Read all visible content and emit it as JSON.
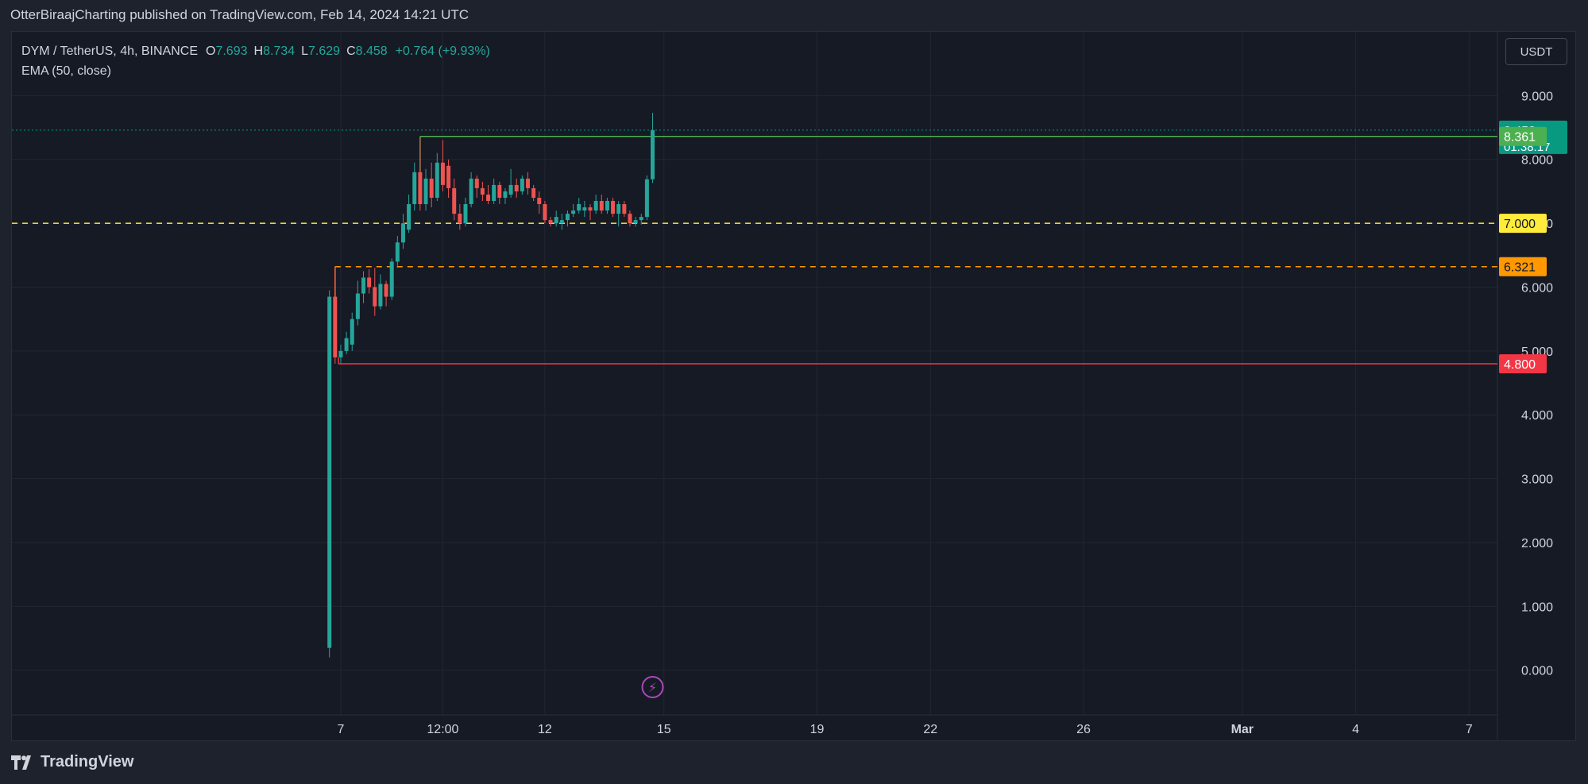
{
  "publish_line": "OtterBiraajCharting published on TradingView.com, Feb 14, 2024 14:21 UTC",
  "legend": {
    "symbol": "DYM / TetherUS, 4h, BINANCE",
    "o_label": "O",
    "o_value": "7.693",
    "h_label": "H",
    "h_value": "8.734",
    "l_label": "L",
    "l_value": "7.629",
    "c_label": "C",
    "c_value": "8.458",
    "change": "+0.764 (+9.93%)",
    "indicator": "EMA (50, close)"
  },
  "currency": "USDT",
  "footer": {
    "brand": "TradingView"
  },
  "colors": {
    "background": "#161a25",
    "grid": "#232632",
    "up": "#26a69a",
    "down": "#ef5350",
    "green_line": "#26a69a",
    "red_line": "#f23645",
    "yellow_line": "#ffeb3b",
    "orange_line": "#ff9800",
    "text": "#d1d4dc",
    "event_icon": "#ab47bc"
  },
  "chart_data": {
    "type": "candlestick",
    "y_axis": {
      "ticks": [
        9,
        8,
        7,
        6,
        5,
        4,
        3,
        2,
        1,
        0
      ],
      "tick_labels": [
        "9.000",
        "8.000",
        "7.000",
        "6.000",
        "5.000",
        "4.000",
        "3.000",
        "2.000",
        "1.000",
        "0.000"
      ],
      "range": [
        -0.7,
        10.0
      ]
    },
    "x_axis": {
      "tick_labels": [
        {
          "label": "7",
          "t": 0.1
        },
        {
          "label": "12:00",
          "t": 1.0
        },
        {
          "label": "12",
          "t": 1.9
        },
        {
          "label": "15",
          "t": 2.95
        },
        {
          "label": "19",
          "t": 4.3
        },
        {
          "label": "22",
          "t": 5.3
        },
        {
          "label": "26",
          "t": 6.65
        },
        {
          "label": "Mar",
          "t": 8.05,
          "bold": true
        },
        {
          "label": "4",
          "t": 9.05
        },
        {
          "label": "7",
          "t": 10.05
        }
      ],
      "range": [
        -2.8,
        10.3
      ]
    },
    "candles": [
      {
        "t": 0.0,
        "o": 0.35,
        "h": 5.95,
        "l": 0.2,
        "c": 5.85
      },
      {
        "t": 0.05,
        "o": 5.85,
        "h": 6.32,
        "l": 4.8,
        "c": 4.9
      },
      {
        "t": 0.1,
        "o": 4.9,
        "h": 5.1,
        "l": 4.8,
        "c": 5.0
      },
      {
        "t": 0.15,
        "o": 5.0,
        "h": 5.3,
        "l": 4.95,
        "c": 5.2
      },
      {
        "t": 0.2,
        "o": 5.1,
        "h": 5.6,
        "l": 5.0,
        "c": 5.5
      },
      {
        "t": 0.25,
        "o": 5.5,
        "h": 6.1,
        "l": 5.4,
        "c": 5.9
      },
      {
        "t": 0.3,
        "o": 5.9,
        "h": 6.25,
        "l": 5.75,
        "c": 6.15
      },
      {
        "t": 0.35,
        "o": 6.15,
        "h": 6.28,
        "l": 5.9,
        "c": 6.0
      },
      {
        "t": 0.4,
        "o": 6.0,
        "h": 6.3,
        "l": 5.55,
        "c": 5.7
      },
      {
        "t": 0.45,
        "o": 5.7,
        "h": 6.2,
        "l": 5.65,
        "c": 6.05
      },
      {
        "t": 0.5,
        "o": 6.05,
        "h": 6.1,
        "l": 5.7,
        "c": 5.85
      },
      {
        "t": 0.55,
        "o": 5.85,
        "h": 6.45,
        "l": 5.8,
        "c": 6.4
      },
      {
        "t": 0.6,
        "o": 6.4,
        "h": 6.8,
        "l": 6.3,
        "c": 6.7
      },
      {
        "t": 0.65,
        "o": 6.7,
        "h": 7.15,
        "l": 6.6,
        "c": 7.0
      },
      {
        "t": 0.7,
        "o": 6.9,
        "h": 7.45,
        "l": 6.85,
        "c": 7.3
      },
      {
        "t": 0.75,
        "o": 7.3,
        "h": 7.95,
        "l": 7.2,
        "c": 7.8
      },
      {
        "t": 0.8,
        "o": 7.8,
        "h": 8.35,
        "l": 7.2,
        "c": 7.3
      },
      {
        "t": 0.85,
        "o": 7.3,
        "h": 7.85,
        "l": 7.2,
        "c": 7.7
      },
      {
        "t": 0.9,
        "o": 7.7,
        "h": 7.95,
        "l": 7.25,
        "c": 7.4
      },
      {
        "t": 0.95,
        "o": 7.4,
        "h": 8.1,
        "l": 7.35,
        "c": 7.95
      },
      {
        "t": 1.0,
        "o": 7.95,
        "h": 8.3,
        "l": 7.5,
        "c": 7.6
      },
      {
        "t": 1.05,
        "o": 7.9,
        "h": 8.0,
        "l": 7.4,
        "c": 7.55
      },
      {
        "t": 1.1,
        "o": 7.55,
        "h": 7.7,
        "l": 7.05,
        "c": 7.15
      },
      {
        "t": 1.15,
        "o": 7.15,
        "h": 7.3,
        "l": 6.9,
        "c": 7.0
      },
      {
        "t": 1.2,
        "o": 7.0,
        "h": 7.4,
        "l": 6.95,
        "c": 7.3
      },
      {
        "t": 1.25,
        "o": 7.3,
        "h": 7.8,
        "l": 7.25,
        "c": 7.7
      },
      {
        "t": 1.3,
        "o": 7.7,
        "h": 7.75,
        "l": 7.4,
        "c": 7.55
      },
      {
        "t": 1.35,
        "o": 7.55,
        "h": 7.65,
        "l": 7.35,
        "c": 7.45
      },
      {
        "t": 1.4,
        "o": 7.45,
        "h": 7.6,
        "l": 7.3,
        "c": 7.35
      },
      {
        "t": 1.45,
        "o": 7.35,
        "h": 7.7,
        "l": 7.3,
        "c": 7.6
      },
      {
        "t": 1.5,
        "o": 7.6,
        "h": 7.65,
        "l": 7.3,
        "c": 7.4
      },
      {
        "t": 1.55,
        "o": 7.4,
        "h": 7.55,
        "l": 7.3,
        "c": 7.5
      },
      {
        "t": 1.6,
        "o": 7.45,
        "h": 7.85,
        "l": 7.4,
        "c": 7.6
      },
      {
        "t": 1.65,
        "o": 7.6,
        "h": 7.7,
        "l": 7.4,
        "c": 7.5
      },
      {
        "t": 1.7,
        "o": 7.5,
        "h": 7.75,
        "l": 7.45,
        "c": 7.7
      },
      {
        "t": 1.75,
        "o": 7.7,
        "h": 7.8,
        "l": 7.45,
        "c": 7.55
      },
      {
        "t": 1.8,
        "o": 7.55,
        "h": 7.6,
        "l": 7.35,
        "c": 7.4
      },
      {
        "t": 1.85,
        "o": 7.4,
        "h": 7.5,
        "l": 7.15,
        "c": 7.3
      },
      {
        "t": 1.9,
        "o": 7.3,
        "h": 7.35,
        "l": 7.0,
        "c": 7.05
      },
      {
        "t": 1.95,
        "o": 7.05,
        "h": 7.1,
        "l": 6.95,
        "c": 7.0
      },
      {
        "t": 2.0,
        "o": 7.0,
        "h": 7.2,
        "l": 6.95,
        "c": 7.1
      },
      {
        "t": 2.05,
        "o": 7.0,
        "h": 7.15,
        "l": 6.9,
        "c": 7.05
      },
      {
        "t": 2.1,
        "o": 7.05,
        "h": 7.2,
        "l": 6.95,
        "c": 7.15
      },
      {
        "t": 2.15,
        "o": 7.15,
        "h": 7.3,
        "l": 7.1,
        "c": 7.2
      },
      {
        "t": 2.2,
        "o": 7.2,
        "h": 7.4,
        "l": 7.15,
        "c": 7.3
      },
      {
        "t": 2.25,
        "o": 7.2,
        "h": 7.35,
        "l": 7.1,
        "c": 7.25
      },
      {
        "t": 2.3,
        "o": 7.25,
        "h": 7.3,
        "l": 7.05,
        "c": 7.2
      },
      {
        "t": 2.35,
        "o": 7.2,
        "h": 7.45,
        "l": 7.15,
        "c": 7.35
      },
      {
        "t": 2.4,
        "o": 7.35,
        "h": 7.45,
        "l": 7.15,
        "c": 7.2
      },
      {
        "t": 2.45,
        "o": 7.2,
        "h": 7.4,
        "l": 7.15,
        "c": 7.35
      },
      {
        "t": 2.5,
        "o": 7.35,
        "h": 7.4,
        "l": 7.1,
        "c": 7.15
      },
      {
        "t": 2.55,
        "o": 7.15,
        "h": 7.35,
        "l": 6.95,
        "c": 7.3
      },
      {
        "t": 2.6,
        "o": 7.3,
        "h": 7.35,
        "l": 7.1,
        "c": 7.15
      },
      {
        "t": 2.65,
        "o": 7.15,
        "h": 7.2,
        "l": 6.95,
        "c": 7.0
      },
      {
        "t": 2.7,
        "o": 7.0,
        "h": 7.1,
        "l": 6.95,
        "c": 7.05
      },
      {
        "t": 2.75,
        "o": 7.05,
        "h": 7.15,
        "l": 6.98,
        "c": 7.1
      },
      {
        "t": 2.8,
        "o": 7.1,
        "h": 7.75,
        "l": 7.05,
        "c": 7.69
      },
      {
        "t": 2.85,
        "o": 7.69,
        "h": 8.73,
        "l": 7.63,
        "c": 8.46
      }
    ],
    "levels": [
      {
        "name": "last-price",
        "price": 8.458,
        "label": "8.458",
        "sublabel": "01:38:17",
        "color": "#089981",
        "text_color": "#ffffff",
        "line": "dotted",
        "t_start": -2.8
      },
      {
        "name": "resistance-green",
        "price": 8.361,
        "label": "8.361",
        "color": "#4caf50",
        "text_color": "#ffffff",
        "line": "solid",
        "t_start": 0.8,
        "from_price": 7.8
      },
      {
        "name": "level-yellow",
        "price": 7.0,
        "label": "7.000",
        "color": "#ffeb3b",
        "text_color": "#131722",
        "line": "dashed",
        "t_start": -2.8
      },
      {
        "name": "level-orange",
        "price": 6.321,
        "label": "6.321",
        "color": "#ff9800",
        "text_color": "#131722",
        "line": "dashed",
        "t_start": 0.05,
        "from_price": 5.85
      },
      {
        "name": "support-red",
        "price": 4.8,
        "label": "4.800",
        "color": "#f23645",
        "text_color": "#ffffff",
        "line": "solid",
        "t_start": 0.08,
        "from_price": 4.9
      }
    ],
    "event_marker": {
      "t": 2.85,
      "symbol": "⚡"
    }
  }
}
